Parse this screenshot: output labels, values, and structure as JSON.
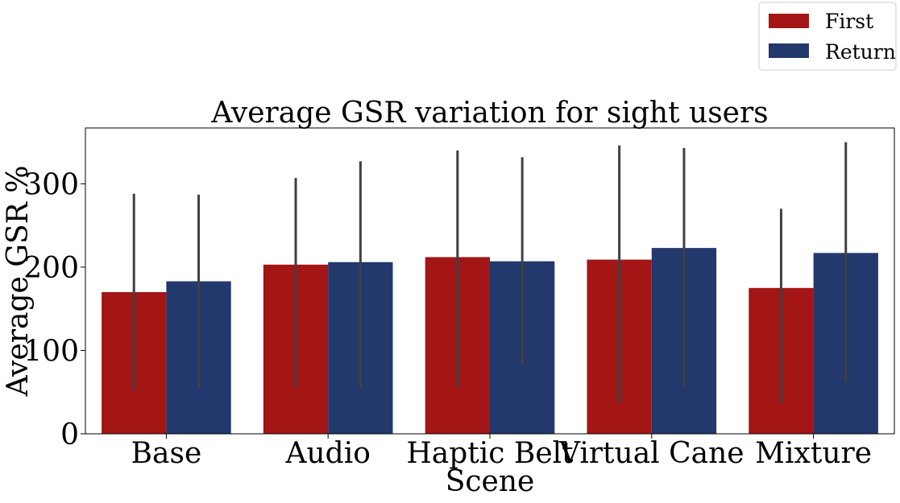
{
  "chart_data": {
    "type": "bar",
    "title": "Average GSR variation for sight users",
    "xlabel": "Scene",
    "ylabel": "Average GSR %",
    "categories": [
      "Base",
      "Audio",
      "Haptic Belt",
      "Virtual Cane",
      "Mixture"
    ],
    "series": [
      {
        "name": "First",
        "color": "#a41515",
        "values": [
          170,
          203,
          212,
          209,
          175
        ],
        "error_low": [
          52,
          55,
          57,
          38,
          37
        ],
        "error_high": [
          288,
          307,
          340,
          346,
          270
        ]
      },
      {
        "name": "Return",
        "color": "#23386c",
        "values": [
          183,
          206,
          207,
          223,
          217
        ],
        "error_low": [
          55,
          54,
          83,
          57,
          63
        ],
        "error_high": [
          287,
          327,
          332,
          343,
          350
        ]
      }
    ],
    "ylim": [
      0,
      367
    ],
    "yticks": [
      0,
      100,
      200,
      300
    ],
    "grid": false,
    "legend": "top-right",
    "error_bar_color": "#404040"
  }
}
